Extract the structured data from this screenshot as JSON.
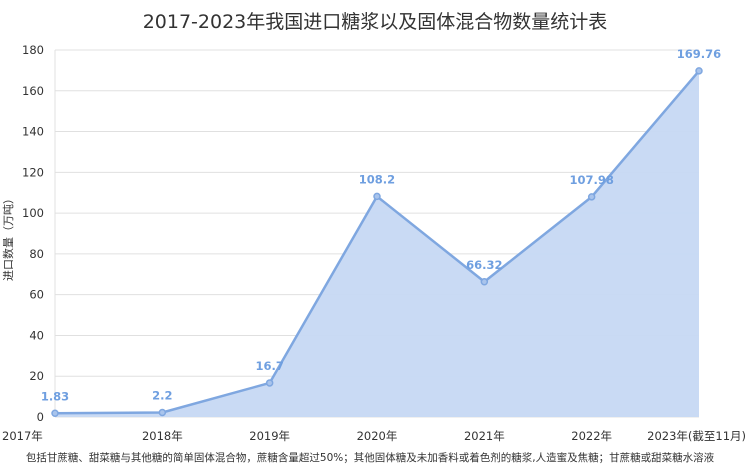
{
  "chart_data": {
    "type": "area",
    "title": "2017-2023年我国进口糖浆以及固体混合物数量统计表",
    "ylabel": "进口数量（万吨）",
    "xlabel": "",
    "categories": [
      "2017年",
      "2018年",
      "2019年",
      "2020年",
      "2021年",
      "2022年",
      "2023年(截至11月)"
    ],
    "series": [
      {
        "values": [
          1.83,
          2.2,
          16.7,
          108.2,
          66.32,
          107.98,
          169.76
        ],
        "labels": [
          "1.83",
          "2.2",
          "16.7",
          "108.2",
          "66.32",
          "107.98",
          "169.76"
        ]
      }
    ],
    "ylim": [
      0,
      180
    ],
    "yticks": [
      0,
      20,
      40,
      60,
      80,
      100,
      120,
      140,
      160,
      180
    ],
    "grid": true,
    "note": "包括甘蔗糖、甜菜糖与其他糖的简单固体混合物，蔗糖含量超过50%；其他固体糖及未加香料或着色剂的糖浆,人造蜜及焦糖；甘蔗糖或甜菜糖水溶液",
    "colors": {
      "line": "#7fa7e0",
      "fill": "#c6d8f3",
      "marker": "#a9c4ec",
      "label": "#6f9fe0",
      "grid": "#e0e0e0"
    }
  }
}
